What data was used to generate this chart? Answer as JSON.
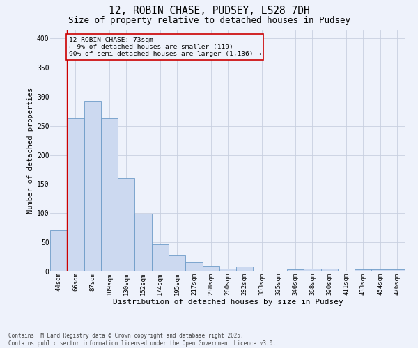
{
  "title_line1": "12, ROBIN CHASE, PUDSEY, LS28 7DH",
  "title_line2": "Size of property relative to detached houses in Pudsey",
  "xlabel": "Distribution of detached houses by size in Pudsey",
  "ylabel": "Number of detached properties",
  "footnote": "Contains HM Land Registry data © Crown copyright and database right 2025.\nContains public sector information licensed under the Open Government Licence v3.0.",
  "categories": [
    "44sqm",
    "66sqm",
    "87sqm",
    "109sqm",
    "130sqm",
    "152sqm",
    "174sqm",
    "195sqm",
    "217sqm",
    "238sqm",
    "260sqm",
    "282sqm",
    "303sqm",
    "325sqm",
    "346sqm",
    "368sqm",
    "390sqm",
    "411sqm",
    "433sqm",
    "454sqm",
    "476sqm"
  ],
  "values": [
    70,
    263,
    293,
    263,
    160,
    99,
    47,
    27,
    16,
    9,
    5,
    8,
    1,
    0,
    3,
    5,
    5,
    0,
    4,
    4,
    4
  ],
  "bar_color": "#ccd9f0",
  "bar_edge_color": "#6e9bc8",
  "grid_color": "#c8d0e0",
  "background_color": "#eef2fb",
  "annotation_box_color": "#cc0000",
  "red_line_x": 0.5,
  "annotation_text": "12 ROBIN CHASE: 73sqm\n← 9% of detached houses are smaller (119)\n90% of semi-detached houses are larger (1,136) →",
  "ylim": [
    0,
    415
  ],
  "yticks": [
    0,
    50,
    100,
    150,
    200,
    250,
    300,
    350,
    400
  ],
  "title1_fontsize": 10.5,
  "title2_fontsize": 9,
  "tick_fontsize": 6.5,
  "ylabel_fontsize": 7.5,
  "xlabel_fontsize": 8,
  "annot_fontsize": 6.8,
  "footnote_fontsize": 5.5
}
